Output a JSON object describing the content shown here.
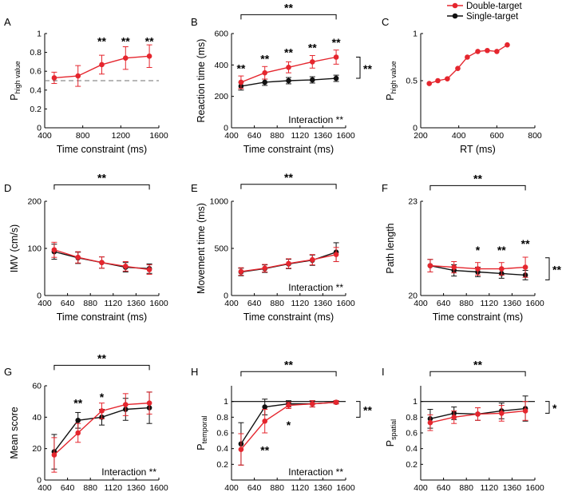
{
  "legend": {
    "entries": [
      {
        "label": "Double-target",
        "color": "#e5262e"
      },
      {
        "label": "Single-target",
        "color": "#111111"
      }
    ],
    "placement": "top-right"
  },
  "colors": {
    "double": "#e5262e",
    "single": "#111111",
    "dashed": "#707070"
  },
  "chart_data": [
    {
      "id": "A",
      "type": "line",
      "xlabel": "Time constraint (ms)",
      "ylabel_main": "P",
      "ylabel_sub": "high value",
      "xlim": [
        400,
        1600
      ],
      "ylim": [
        0,
        1
      ],
      "xticks": [
        400,
        800,
        1200,
        1600
      ],
      "yticks": [
        0,
        0.2,
        0.4,
        0.6,
        0.8,
        1
      ],
      "ytick_labels": [
        "0",
        "0.2",
        "0.4",
        "0.6",
        "0.8",
        "1"
      ],
      "hline": 0.5,
      "series": [
        {
          "name": "Double-target",
          "color": "#e5262e",
          "x": [
            500,
            750,
            1000,
            1250,
            1500
          ],
          "y": [
            0.53,
            0.55,
            0.67,
            0.74,
            0.76
          ],
          "err": [
            0.06,
            0.11,
            0.1,
            0.12,
            0.12
          ]
        }
      ],
      "point_stars": [
        {
          "x": 1000,
          "y": 0.92,
          "text": "**"
        },
        {
          "x": 1250,
          "y": 0.92,
          "text": "**"
        },
        {
          "x": 1500,
          "y": 0.92,
          "text": "**"
        }
      ]
    },
    {
      "id": "B",
      "type": "line",
      "xlabel": "Time constraint (ms)",
      "ylabel_main": "Reaction time (ms)",
      "ylabel_sub": "",
      "xlim": [
        400,
        1600
      ],
      "ylim": [
        0,
        600
      ],
      "xticks": [
        400,
        640,
        880,
        1120,
        1360,
        1600
      ],
      "yticks": [
        0,
        200,
        400,
        600
      ],
      "ytick_labels": [
        "0",
        "200",
        "400",
        "600"
      ],
      "series": [
        {
          "name": "Double-target",
          "color": "#e5262e",
          "x": [
            500,
            750,
            1000,
            1250,
            1500
          ],
          "y": [
            290,
            350,
            385,
            420,
            450
          ],
          "err": [
            40,
            40,
            35,
            40,
            45
          ]
        },
        {
          "name": "Single-target",
          "color": "#111111",
          "x": [
            500,
            750,
            1000,
            1250,
            1500
          ],
          "y": [
            265,
            290,
            300,
            305,
            315
          ],
          "err": [
            25,
            20,
            20,
            20,
            20
          ]
        }
      ],
      "bracket": {
        "x1": 500,
        "x2": 1500,
        "y": 720,
        "text": "**"
      },
      "side_bracket": {
        "y1": 450,
        "y2": 315,
        "text": "**"
      },
      "point_stars": [
        {
          "x": 500,
          "y": 380,
          "text": "**"
        },
        {
          "x": 750,
          "y": 440,
          "text": "**"
        },
        {
          "x": 1000,
          "y": 480,
          "text": "**"
        },
        {
          "x": 1250,
          "y": 510,
          "text": "**"
        },
        {
          "x": 1500,
          "y": 545,
          "text": "**"
        }
      ],
      "interaction": "Interaction **"
    },
    {
      "id": "C",
      "type": "line",
      "xlabel": "RT (ms)",
      "ylabel_main": "P",
      "ylabel_sub": "high value",
      "xlim": [
        200,
        800
      ],
      "ylim": [
        0,
        1
      ],
      "xticks": [
        200,
        400,
        600,
        800
      ],
      "yticks": [
        0,
        0.5,
        1
      ],
      "ytick_labels": [
        "0",
        "0.5",
        "1"
      ],
      "series": [
        {
          "name": "Double-target",
          "color": "#e5262e",
          "x": [
            245,
            290,
            340,
            395,
            445,
            500,
            550,
            600,
            655
          ],
          "y": [
            0.47,
            0.5,
            0.52,
            0.63,
            0.75,
            0.81,
            0.82,
            0.81,
            0.88
          ],
          "err": []
        }
      ]
    },
    {
      "id": "D",
      "type": "line",
      "xlabel": "Time constraint (ms)",
      "ylabel_main": "IMV (cm/s)",
      "ylabel_sub": "",
      "xlim": [
        400,
        1600
      ],
      "ylim": [
        0,
        200
      ],
      "xticks": [
        400,
        640,
        880,
        1120,
        1360,
        1600
      ],
      "yticks": [
        0,
        100,
        200
      ],
      "ytick_labels": [
        "0",
        "100",
        "200"
      ],
      "series": [
        {
          "name": "Double-target",
          "color": "#e5262e",
          "x": [
            500,
            750,
            1000,
            1250,
            1500
          ],
          "y": [
            97,
            81,
            70,
            62,
            55
          ],
          "err": [
            16,
            12,
            12,
            10,
            10
          ]
        },
        {
          "name": "Single-target",
          "color": "#111111",
          "x": [
            500,
            750,
            1000,
            1250,
            1500
          ],
          "y": [
            93,
            80,
            70,
            60,
            57
          ],
          "err": [
            16,
            12,
            12,
            10,
            10
          ]
        }
      ],
      "bracket": {
        "x1": 500,
        "x2": 1500,
        "y": 235,
        "text": "**"
      }
    },
    {
      "id": "E",
      "type": "line",
      "xlabel": "Time constraint (ms)",
      "ylabel_main": "Movement time (ms)",
      "ylabel_sub": "",
      "xlim": [
        400,
        1600
      ],
      "ylim": [
        0,
        1000
      ],
      "xticks": [
        400,
        640,
        880,
        1120,
        1360,
        1600
      ],
      "yticks": [
        0,
        500,
        1000
      ],
      "ytick_labels": [
        "0",
        "500",
        "1000"
      ],
      "series": [
        {
          "name": "Double-target",
          "color": "#e5262e",
          "x": [
            500,
            750,
            1000,
            1250,
            1500
          ],
          "y": [
            255,
            290,
            340,
            380,
            435
          ],
          "err": [
            40,
            40,
            50,
            55,
            75
          ]
        },
        {
          "name": "Single-target",
          "color": "#111111",
          "x": [
            500,
            750,
            1000,
            1250,
            1500
          ],
          "y": [
            250,
            285,
            335,
            375,
            460
          ],
          "err": [
            40,
            40,
            50,
            55,
            100
          ]
        }
      ],
      "bracket": {
        "x1": 500,
        "x2": 1500,
        "y": 1180,
        "text": "**"
      },
      "interaction": "Interaction **"
    },
    {
      "id": "F",
      "type": "line",
      "xlabel": "Time constraint (ms)",
      "ylabel_main": "Path length",
      "ylabel_sub": "",
      "xlim": [
        400,
        1600
      ],
      "ylim": [
        20,
        23
      ],
      "xticks": [
        400,
        640,
        880,
        1120,
        1360,
        1600
      ],
      "yticks": [
        20,
        23
      ],
      "ytick_labels": [
        "20",
        "23"
      ],
      "series": [
        {
          "name": "Double-target",
          "color": "#e5262e",
          "x": [
            500,
            750,
            1000,
            1250,
            1500
          ],
          "y": [
            20.95,
            20.9,
            20.85,
            20.85,
            20.9
          ],
          "err": [
            0.2,
            0.18,
            0.2,
            0.2,
            0.32
          ]
        },
        {
          "name": "Single-target",
          "color": "#111111",
          "x": [
            500,
            750,
            1000,
            1250,
            1500
          ],
          "y": [
            20.95,
            20.8,
            20.75,
            20.7,
            20.65
          ],
          "err": [
            0.2,
            0.18,
            0.15,
            0.15,
            0.15
          ]
        }
      ],
      "bracket": {
        "x1": 500,
        "x2": 1500,
        "y": 23.5,
        "text": "**"
      },
      "side_bracket": {
        "y1": 21.2,
        "y2": 20.5,
        "text": "**"
      },
      "point_stars": [
        {
          "x": 1000,
          "y": 21.45,
          "text": "*"
        },
        {
          "x": 1250,
          "y": 21.45,
          "text": "**"
        },
        {
          "x": 1500,
          "y": 21.65,
          "text": "**"
        }
      ]
    },
    {
      "id": "G",
      "type": "line",
      "xlabel": "Time constraint (ms)",
      "ylabel_main": "Mean score",
      "ylabel_sub": "",
      "xlim": [
        400,
        1600
      ],
      "ylim": [
        0,
        60
      ],
      "xticks": [
        400,
        640,
        880,
        1120,
        1360,
        1600
      ],
      "yticks": [
        0,
        20,
        40,
        60
      ],
      "ytick_labels": [
        "0",
        "20",
        "40",
        "60"
      ],
      "series": [
        {
          "name": "Double-target",
          "color": "#e5262e",
          "x": [
            500,
            750,
            1000,
            1250,
            1500
          ],
          "y": [
            16,
            30,
            44,
            48,
            49
          ],
          "err": [
            11,
            6,
            5,
            7,
            7
          ]
        },
        {
          "name": "Single-target",
          "color": "#111111",
          "x": [
            500,
            750,
            1000,
            1250,
            1500
          ],
          "y": [
            18,
            38,
            40,
            45,
            46
          ],
          "err": [
            11,
            5,
            5,
            7,
            10
          ]
        }
      ],
      "bracket": {
        "x1": 500,
        "x2": 1500,
        "y": 73,
        "text": "**"
      },
      "point_stars": [
        {
          "x": 750,
          "y": 49,
          "text": "**"
        },
        {
          "x": 1000,
          "y": 53,
          "text": "*"
        }
      ],
      "interaction": "Interaction **"
    },
    {
      "id": "H",
      "type": "line",
      "xlabel": "Time constraint (ms)",
      "ylabel_main": "P",
      "ylabel_sub": "temporal",
      "xlim": [
        400,
        1600
      ],
      "ylim": [
        0,
        1.2
      ],
      "xticks": [
        400,
        640,
        880,
        1120,
        1360,
        1600
      ],
      "yticks": [
        0.2,
        0.4,
        0.6,
        0.8,
        1
      ],
      "ytick_labels": [
        "0.2",
        "0.4",
        "0.6",
        "0.8",
        "1"
      ],
      "hline": 1.0,
      "hline_solid": true,
      "series": [
        {
          "name": "Double-target",
          "color": "#e5262e",
          "x": [
            500,
            750,
            1000,
            1250,
            1500
          ],
          "y": [
            0.39,
            0.75,
            0.95,
            0.97,
            0.99
          ],
          "err": [
            0.2,
            0.15,
            0.04,
            0.04,
            0.02
          ]
        },
        {
          "name": "Single-target",
          "color": "#111111",
          "x": [
            500,
            750,
            1000,
            1250,
            1500
          ],
          "y": [
            0.46,
            0.93,
            0.97,
            0.97,
            0.99
          ],
          "err": [
            0.27,
            0.1,
            0.04,
            0.04,
            0.02
          ]
        }
      ],
      "bracket": {
        "x1": 500,
        "x2": 1500,
        "y": 1.38,
        "text": "**"
      },
      "side_bracket": {
        "y1": 1.0,
        "y2": 0.8,
        "text": "**"
      },
      "point_stars": [
        {
          "x": 750,
          "y": 0.38,
          "text": "**"
        },
        {
          "x": 1000,
          "y": 0.7,
          "text": "*"
        }
      ],
      "interaction": "Interaction **"
    },
    {
      "id": "I",
      "type": "line",
      "xlabel": "Time constraint (ms)",
      "ylabel_main": "P",
      "ylabel_sub": "spatial",
      "xlim": [
        400,
        1600
      ],
      "ylim": [
        0,
        1.2
      ],
      "xticks": [
        400,
        640,
        880,
        1120,
        1360,
        1600
      ],
      "yticks": [
        0.2,
        0.4,
        0.6,
        0.8,
        1
      ],
      "ytick_labels": [
        "0.2",
        "0.4",
        "0.6",
        "0.8",
        "1"
      ],
      "hline": 1.0,
      "hline_solid": true,
      "series": [
        {
          "name": "Double-target",
          "color": "#e5262e",
          "x": [
            500,
            750,
            1000,
            1250,
            1500
          ],
          "y": [
            0.73,
            0.8,
            0.84,
            0.85,
            0.88
          ],
          "err": [
            0.1,
            0.08,
            0.08,
            0.1,
            0.12
          ]
        },
        {
          "name": "Single-target",
          "color": "#111111",
          "x": [
            500,
            750,
            1000,
            1250,
            1500
          ],
          "y": [
            0.78,
            0.85,
            0.84,
            0.88,
            0.91
          ],
          "err": [
            0.12,
            0.08,
            0.08,
            0.1,
            0.16
          ]
        }
      ],
      "bracket": {
        "x1": 500,
        "x2": 1500,
        "y": 1.38,
        "text": "**"
      },
      "side_bracket": {
        "y1": 1.0,
        "y2": 0.85,
        "text": "*"
      }
    }
  ]
}
